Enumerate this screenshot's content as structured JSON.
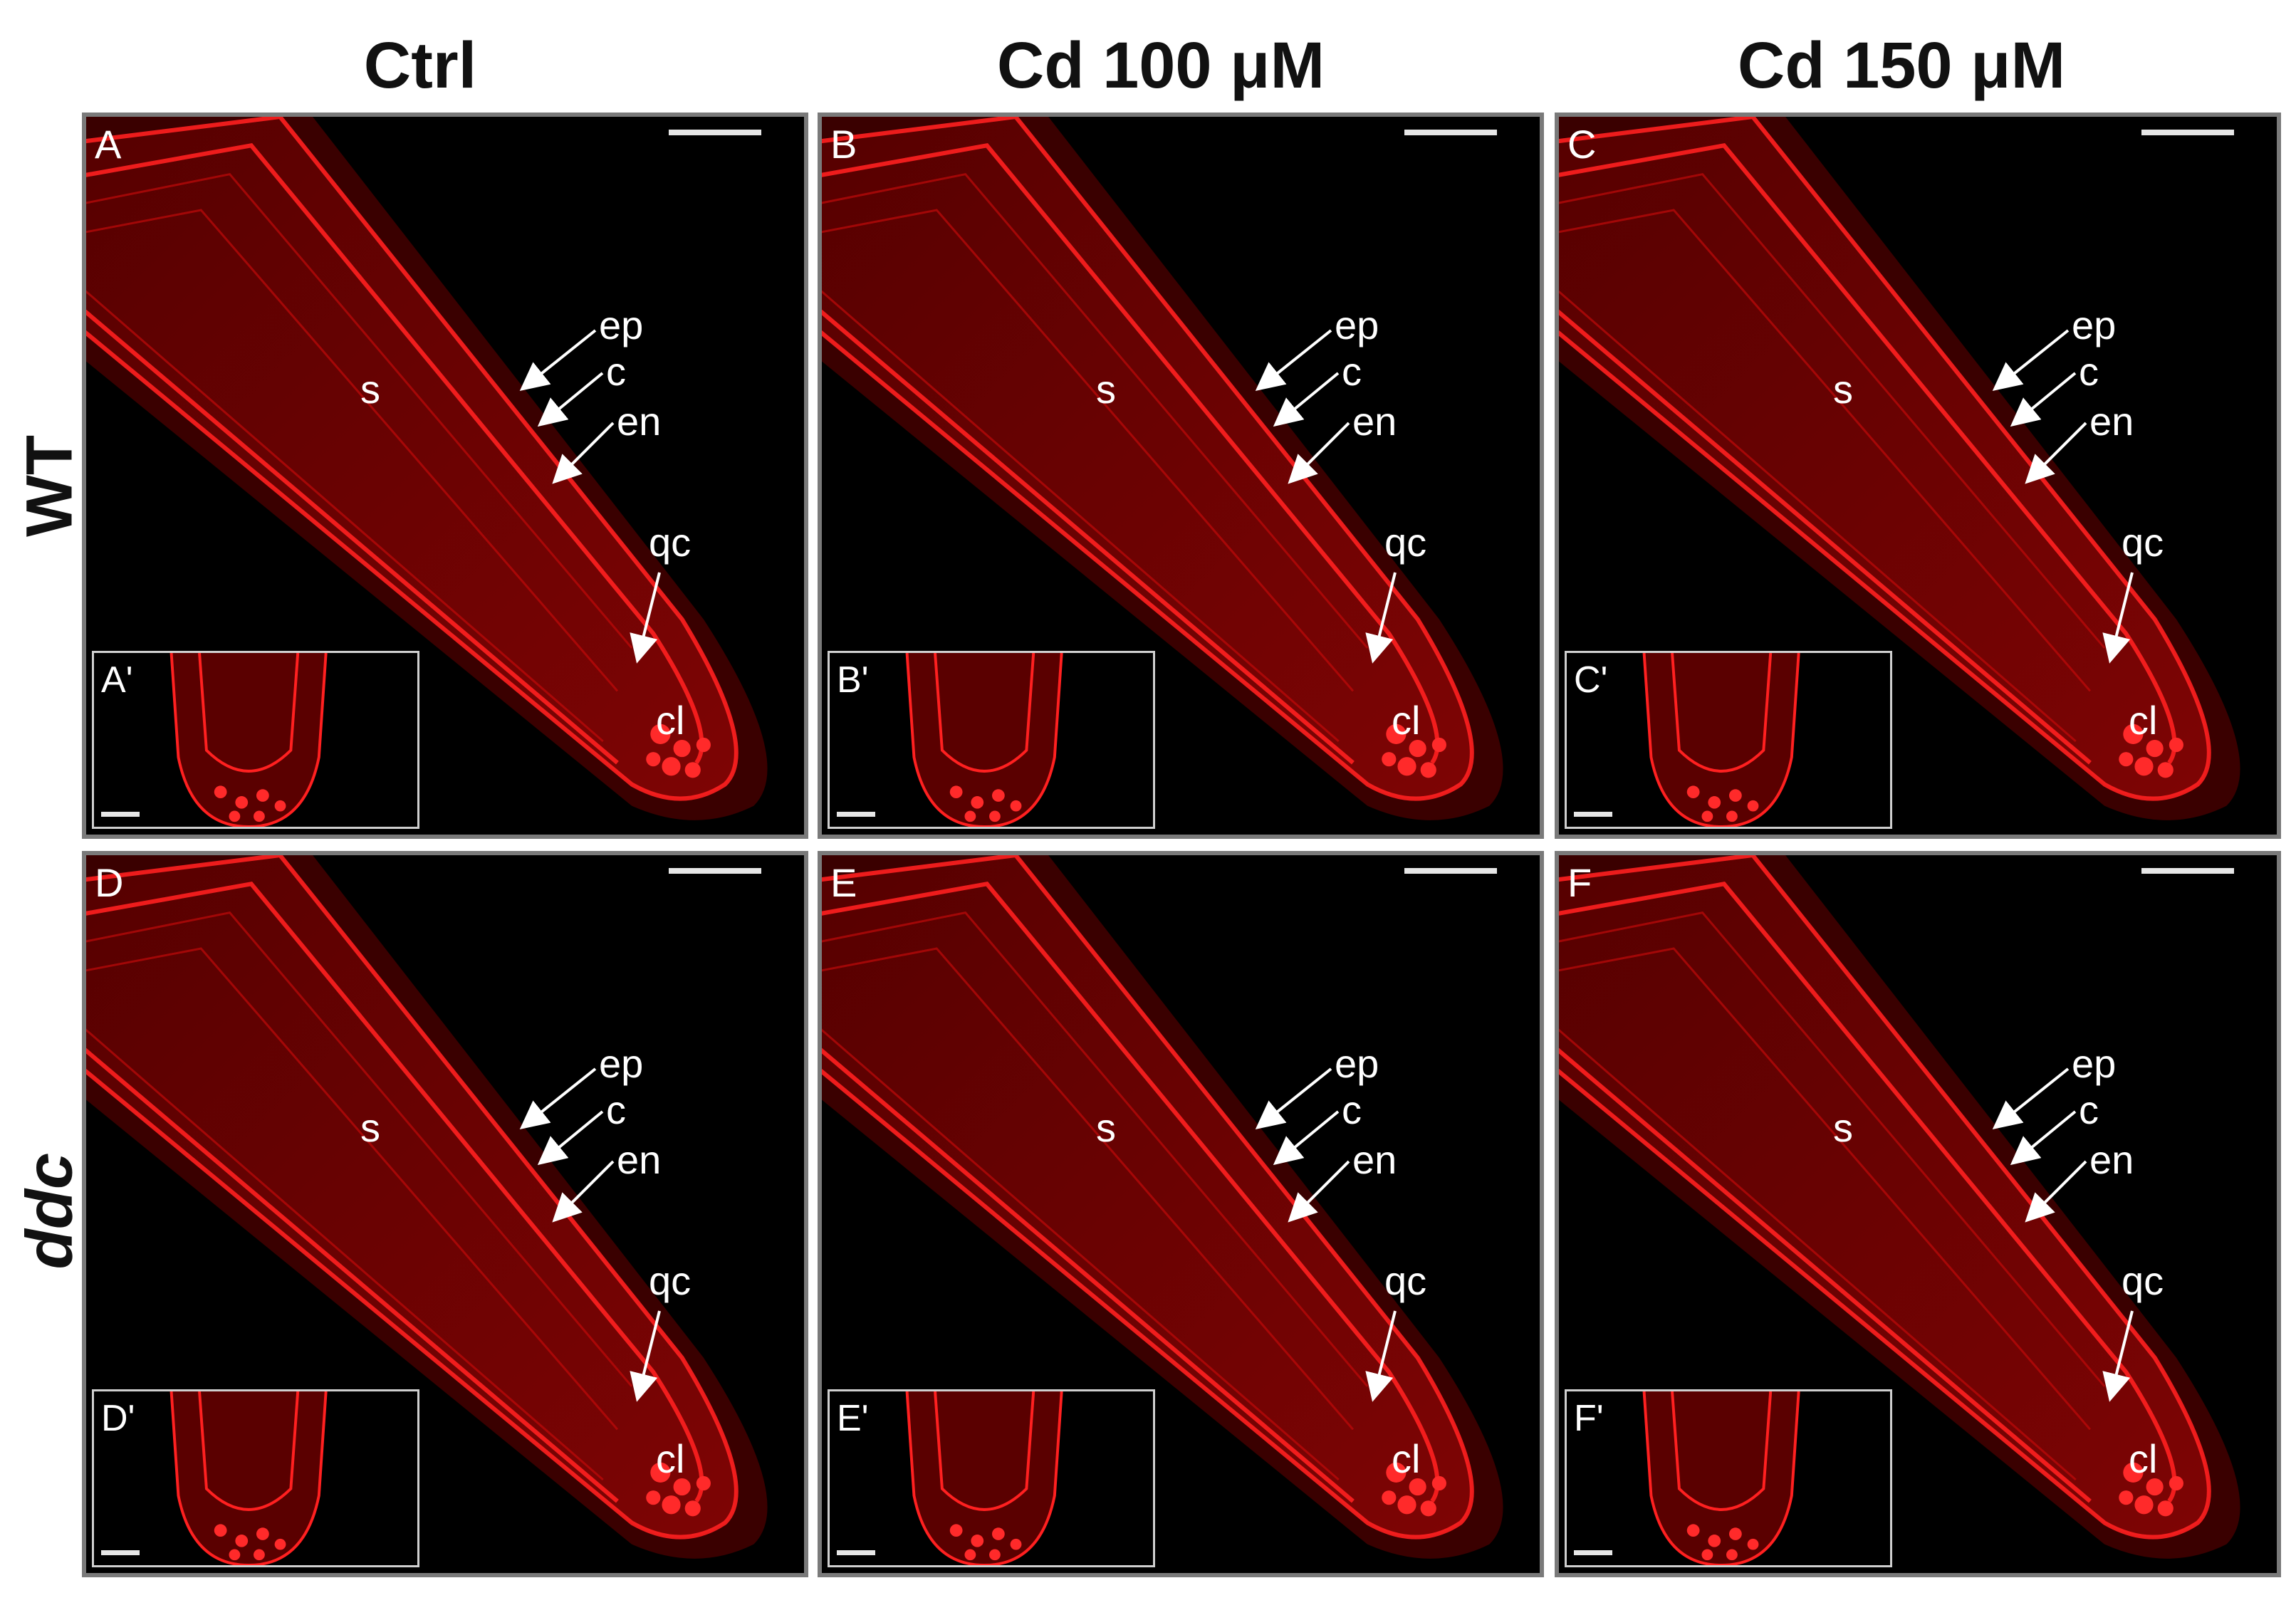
{
  "columns": [
    "Ctrl",
    "Cd 100 μM",
    "Cd 150 μM"
  ],
  "rows": [
    "WT",
    "ddc"
  ],
  "panels": [
    {
      "letter": "A",
      "inset": "A'",
      "labels": {
        "ep": "ep",
        "c": "c",
        "en": "en",
        "s": "s",
        "qc": "qc",
        "cl": "cl"
      }
    },
    {
      "letter": "B",
      "inset": "B'",
      "labels": {
        "ep": "ep",
        "c": "c",
        "en": "en",
        "s": "s",
        "qc": "qc",
        "cl": "cl"
      }
    },
    {
      "letter": "C",
      "inset": "C'",
      "labels": {
        "ep": "ep",
        "c": "c",
        "en": "en",
        "s": "s",
        "qc": "qc",
        "cl": "cl"
      }
    },
    {
      "letter": "D",
      "inset": "D'",
      "labels": {
        "ep": "ep",
        "c": "c",
        "en": "en",
        "s": "s",
        "qc": "qc",
        "cl": "cl"
      }
    },
    {
      "letter": "E",
      "inset": "E'",
      "labels": {
        "ep": "ep",
        "c": "c",
        "en": "en",
        "s": "s",
        "qc": "qc",
        "cl": "cl"
      }
    },
    {
      "letter": "F",
      "inset": "F'",
      "labels": {
        "ep": "ep",
        "c": "c",
        "en": "en",
        "s": "s",
        "qc": "qc",
        "cl": "cl"
      }
    }
  ],
  "colors": {
    "stain": "#e01010",
    "background": "#000000",
    "annotation": "#ffffff"
  }
}
